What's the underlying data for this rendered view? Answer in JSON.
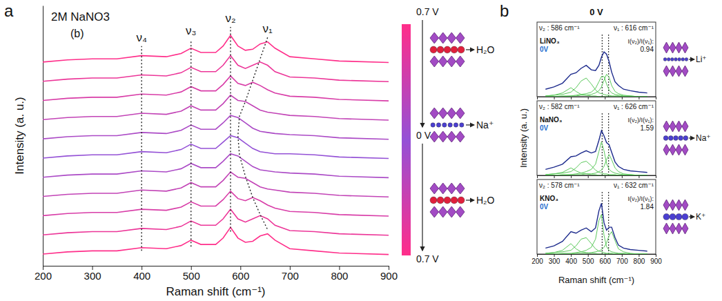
{
  "chart_data": [
    {
      "type": "line",
      "panel_label": "a",
      "title": "2M NaNO3",
      "subtitle": "(b)",
      "xlabel": "Raman shift (cm⁻¹)",
      "ylabel": "Intensity (a. u.)",
      "x": [
        200,
        250,
        300,
        350,
        400,
        450,
        480,
        500,
        520,
        550,
        565,
        580,
        595,
        610,
        625,
        640,
        655,
        670,
        700,
        750,
        800,
        900
      ],
      "series": [
        {
          "color": "#ff2e8a",
          "values": [
            95.5,
            96.5,
            97,
            97,
            98.5,
            98,
            99.5,
            102,
            100,
            100,
            103,
            108,
            103,
            101,
            101.5,
            104,
            105,
            102,
            98,
            97,
            96,
            95.3
          ]
        },
        {
          "color": "#ec3598",
          "values": [
            86.5,
            87.5,
            88,
            88,
            89.5,
            89,
            90.5,
            93,
            91,
            91,
            94,
            98.5,
            94,
            92.5,
            94,
            95.5,
            94,
            91,
            88.5,
            88,
            87,
            86.3
          ]
        },
        {
          "color": "#d83ca7",
          "values": [
            77.5,
            78.5,
            79,
            79,
            80.5,
            80,
            81.5,
            84,
            82,
            82,
            85,
            89,
            85.5,
            84.5,
            86,
            84.5,
            82.5,
            81,
            79.5,
            79,
            78,
            77.3
          ]
        },
        {
          "color": "#c243b6",
          "values": [
            68.5,
            69.5,
            70,
            70,
            71.5,
            71,
            72.5,
            75,
            73,
            73,
            76,
            80,
            77.5,
            77,
            75,
            73,
            72,
            71.5,
            70.5,
            70,
            69,
            68.3
          ]
        },
        {
          "color": "#ab4ac6",
          "values": [
            59.5,
            60.5,
            61,
            61,
            62.5,
            62,
            63.5,
            66,
            64,
            64,
            67,
            70.5,
            69.5,
            67,
            64.5,
            63,
            62.5,
            62,
            61.5,
            61,
            60,
            59.3
          ]
        },
        {
          "color": "#9451d6",
          "values": [
            50.5,
            51.5,
            52,
            52,
            53.5,
            53,
            54.5,
            57,
            55,
            55,
            58,
            61,
            60,
            57.5,
            55,
            53.5,
            53,
            52.5,
            52.5,
            52,
            51,
            50.3
          ]
        },
        {
          "color": "#ab4ac6",
          "values": [
            41.5,
            42.5,
            43,
            43,
            44.5,
            44,
            45.5,
            48,
            46,
            46,
            49,
            52.5,
            51.5,
            49,
            46.5,
            45,
            44.5,
            44,
            43.5,
            43,
            42,
            41.3
          ]
        },
        {
          "color": "#c243b6",
          "values": [
            32.5,
            33.5,
            34,
            34,
            35.5,
            35,
            36.5,
            39,
            37,
            37,
            40,
            44,
            41.5,
            41,
            39,
            37,
            36,
            35.5,
            34.5,
            34,
            33,
            32.3
          ]
        },
        {
          "color": "#d83ca7",
          "values": [
            23.5,
            24.5,
            25,
            25,
            26.5,
            26,
            27.5,
            30,
            28,
            28,
            31,
            35,
            31.5,
            30.5,
            32,
            30.5,
            28.5,
            27,
            25.5,
            25,
            24,
            23.3
          ]
        },
        {
          "color": "#ec3598",
          "values": [
            14.5,
            15.5,
            16,
            16,
            17.5,
            17,
            18.5,
            21,
            19,
            19,
            22,
            26.5,
            22,
            20.5,
            22,
            23.5,
            22,
            19,
            16.5,
            16,
            15,
            14.3
          ]
        },
        {
          "color": "#ff2e8a",
          "values": [
            5.5,
            6.5,
            7,
            7,
            8.5,
            8,
            9.5,
            12,
            10,
            10,
            13,
            18,
            13,
            11,
            11.5,
            14,
            15,
            12,
            8,
            7,
            6,
            5.3
          ]
        }
      ],
      "xlim": [
        200,
        900
      ],
      "xticks": [
        200,
        300,
        400,
        500,
        600,
        700,
        800,
        900
      ],
      "ylim": [
        0,
        122
      ],
      "tick_labels": "x",
      "peak_guides": [
        {
          "label": "ν₄",
          "x": [
            400,
            400
          ],
          "y": [
            7,
            103
          ]
        },
        {
          "label": "ν₃",
          "x": [
            500,
            500
          ],
          "y": [
            9,
            106
          ]
        },
        {
          "label": "ν₂",
          "x": [
            580,
            580
          ],
          "y": [
            16,
            112
          ]
        },
        {
          "label": "ν₁",
          "x": [
            655,
            640,
            625,
            610,
            598,
            595,
            598,
            610,
            625,
            640,
            655
          ],
          "y": [
            107,
            97,
            87,
            77,
            70,
            61,
            52,
            42,
            32,
            24,
            17
          ]
        }
      ],
      "colorbar": {
        "labels": [
          "0.7 V",
          "0 V",
          "0.7 V"
        ],
        "colors": [
          "#ff2e8a",
          "#9451d6",
          "#ff2e8a"
        ]
      },
      "schematics": [
        "H₂O",
        "Na⁺",
        "H₂O"
      ]
    },
    {
      "type": "line",
      "panel_label": "b",
      "title": "0 V",
      "x": [
        250,
        300,
        350,
        400,
        430,
        460,
        490,
        520,
        545,
        565,
        580,
        595,
        610,
        625,
        640,
        660,
        680,
        710,
        750,
        800,
        850
      ],
      "series": [
        {
          "color": "#5cc95c",
          "values": [
            0.01,
            0.02,
            0.05,
            0.12,
            0.07,
            0.03,
            0.02,
            0.01,
            0.01,
            0,
            0,
            0,
            0,
            0,
            0,
            0,
            0,
            0,
            0,
            0,
            0
          ]
        },
        {
          "color": "#5cc95c",
          "values": [
            0.01,
            0.02,
            0.03,
            0.06,
            0.12,
            0.21,
            0.25,
            0.17,
            0.09,
            0.05,
            0.04,
            0.03,
            0.02,
            0.02,
            0.01,
            0.01,
            0.01,
            0,
            0,
            0,
            0
          ]
        },
        {
          "color": "#5cc95c",
          "values": [
            0,
            0,
            0.01,
            0.01,
            0.02,
            0.03,
            0.04,
            0.06,
            0.11,
            0.2,
            0.27,
            0.27,
            0.17,
            0.09,
            0.05,
            0.03,
            0.02,
            0.01,
            0.01,
            0,
            0
          ]
        },
        {
          "color": "#5cc95c",
          "values": [
            0,
            0,
            0,
            0.01,
            0.01,
            0.02,
            0.02,
            0.03,
            0.05,
            0.08,
            0.13,
            0.22,
            0.3,
            0.26,
            0.15,
            0.07,
            0.04,
            0.02,
            0.01,
            0,
            0
          ]
        },
        {
          "color": "#1c2a8c",
          "values": [
            0.1,
            0.13,
            0.18,
            0.3,
            0.32,
            0.38,
            0.42,
            0.36,
            0.35,
            0.42,
            0.53,
            0.6,
            0.57,
            0.47,
            0.33,
            0.2,
            0.15,
            0.1,
            0.08,
            0.06,
            0.05
          ]
        }
      ],
      "xlim": [
        200,
        900
      ],
      "xticks": [
        200,
        300,
        400,
        500,
        600,
        700,
        800,
        900
      ],
      "ylim": [
        0,
        1
      ],
      "tick_labels": false,
      "ref_lines": [
        584,
        622
      ],
      "peak_labels": [
        "ν₂ : 586 cm⁻¹",
        "ν₁ : 616 cm⁻¹"
      ],
      "sample": "LiNO₃",
      "potential": "0V",
      "ratio_label": "I(ν₂)/I(ν₁):",
      "ratio": 0.94,
      "ion": "Li⁺"
    },
    {
      "type": "line",
      "ylabel": "Intensity (a. u.)",
      "x": [
        250,
        300,
        350,
        400,
        430,
        460,
        490,
        520,
        545,
        565,
        580,
        595,
        610,
        625,
        640,
        660,
        680,
        710,
        750,
        800,
        850
      ],
      "series": [
        {
          "color": "#5cc95c",
          "values": [
            0.01,
            0.02,
            0.04,
            0.1,
            0.06,
            0.03,
            0.02,
            0.01,
            0.01,
            0,
            0,
            0,
            0,
            0,
            0,
            0,
            0,
            0,
            0,
            0,
            0
          ]
        },
        {
          "color": "#5cc95c",
          "values": [
            0.01,
            0.02,
            0.03,
            0.05,
            0.1,
            0.17,
            0.19,
            0.13,
            0.07,
            0.04,
            0.03,
            0.02,
            0.02,
            0.01,
            0.01,
            0.01,
            0,
            0,
            0,
            0,
            0
          ]
        },
        {
          "color": "#5cc95c",
          "values": [
            0,
            0,
            0.01,
            0.01,
            0.02,
            0.03,
            0.05,
            0.08,
            0.15,
            0.32,
            0.45,
            0.33,
            0.16,
            0.08,
            0.05,
            0.03,
            0.02,
            0.01,
            0.01,
            0,
            0
          ]
        },
        {
          "color": "#5cc95c",
          "values": [
            0,
            0,
            0,
            0.01,
            0.01,
            0.01,
            0.02,
            0.02,
            0.03,
            0.05,
            0.07,
            0.12,
            0.21,
            0.28,
            0.21,
            0.1,
            0.05,
            0.02,
            0.01,
            0,
            0
          ]
        },
        {
          "color": "#1c2a8c",
          "values": [
            0.08,
            0.11,
            0.15,
            0.25,
            0.26,
            0.3,
            0.33,
            0.3,
            0.32,
            0.47,
            0.6,
            0.53,
            0.44,
            0.41,
            0.31,
            0.18,
            0.12,
            0.08,
            0.06,
            0.05,
            0.04
          ]
        }
      ],
      "xlim": [
        200,
        900
      ],
      "xticks": [
        200,
        300,
        400,
        500,
        600,
        700,
        800,
        900
      ],
      "ylim": [
        0,
        1
      ],
      "tick_labels": false,
      "ref_lines": [
        584,
        622
      ],
      "peak_labels": [
        "ν₂ : 582 cm⁻¹",
        "ν₁ : 626 cm⁻¹"
      ],
      "sample": "NaNO₃",
      "potential": "0V",
      "ratio_label": "I(ν₂)/I(ν₁):",
      "ratio": 1.59,
      "ion": "Na⁺"
    },
    {
      "type": "line",
      "xlabel": "Raman shift (cm⁻¹)",
      "x": [
        250,
        300,
        350,
        400,
        430,
        460,
        490,
        520,
        545,
        565,
        580,
        595,
        610,
        625,
        640,
        660,
        680,
        710,
        750,
        800,
        850
      ],
      "series": [
        {
          "color": "#5cc95c",
          "values": [
            0.01,
            0.02,
            0.05,
            0.14,
            0.07,
            0.03,
            0.02,
            0.01,
            0.01,
            0,
            0,
            0,
            0,
            0,
            0,
            0,
            0,
            0,
            0,
            0,
            0
          ]
        },
        {
          "color": "#5cc95c",
          "values": [
            0.01,
            0.02,
            0.03,
            0.05,
            0.11,
            0.2,
            0.22,
            0.14,
            0.07,
            0.04,
            0.03,
            0.02,
            0.01,
            0.01,
            0.01,
            0,
            0,
            0,
            0,
            0,
            0
          ]
        },
        {
          "color": "#5cc95c",
          "values": [
            0,
            0,
            0.01,
            0.01,
            0.02,
            0.03,
            0.05,
            0.09,
            0.2,
            0.45,
            0.53,
            0.25,
            0.1,
            0.05,
            0.03,
            0.02,
            0.01,
            0.01,
            0,
            0,
            0
          ]
        },
        {
          "color": "#5cc95c",
          "values": [
            0,
            0,
            0,
            0,
            0.01,
            0.01,
            0.01,
            0.02,
            0.03,
            0.04,
            0.06,
            0.09,
            0.15,
            0.25,
            0.3,
            0.18,
            0.07,
            0.03,
            0.01,
            0,
            0
          ]
        },
        {
          "color": "#1c2a8c",
          "values": [
            0.08,
            0.11,
            0.17,
            0.3,
            0.28,
            0.32,
            0.35,
            0.3,
            0.35,
            0.58,
            0.68,
            0.42,
            0.32,
            0.36,
            0.36,
            0.22,
            0.12,
            0.08,
            0.06,
            0.05,
            0.04
          ]
        }
      ],
      "xlim": [
        200,
        900
      ],
      "xticks": [
        200,
        300,
        400,
        500,
        600,
        700,
        800,
        900
      ],
      "ylim": [
        0,
        1
      ],
      "tick_labels": "x",
      "ref_lines": [
        584,
        622
      ],
      "peak_labels": [
        "ν₂ : 578 cm⁻¹",
        "ν₁ : 632 cm⁻¹"
      ],
      "sample": "KNO₃",
      "potential": "0V",
      "ratio_label": "I(ν₂)/I(ν₁):",
      "ratio": 1.84,
      "ion": "K⁺"
    }
  ]
}
